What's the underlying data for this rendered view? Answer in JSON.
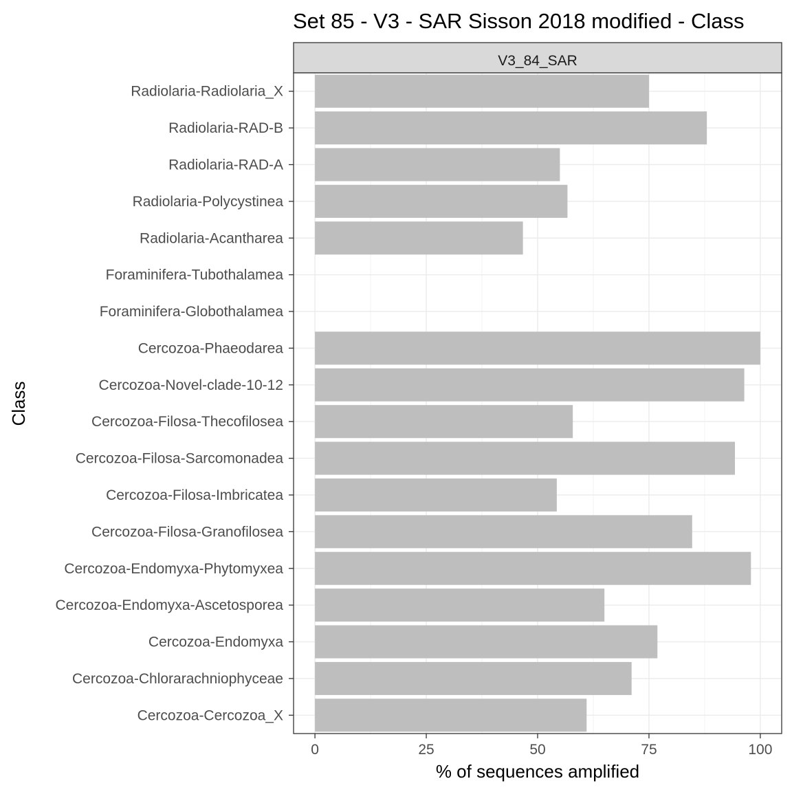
{
  "chart_data": {
    "type": "bar",
    "orientation": "horizontal",
    "title": "Set 85 - V3 - SAR Sisson 2018 modified - Class",
    "facet_label": "V3_84_SAR",
    "xlabel": "% of sequences amplified",
    "ylabel": "Class",
    "xlim": [
      -4.8,
      104.8
    ],
    "xticks": [
      0,
      25,
      50,
      75,
      100
    ],
    "grid": true,
    "bar_color": "#bebebe",
    "categories": [
      "Radiolaria-Radiolaria_X",
      "Radiolaria-RAD-B",
      "Radiolaria-RAD-A",
      "Radiolaria-Polycystinea",
      "Radiolaria-Acantharea",
      "Foraminifera-Tubothalamea",
      "Foraminifera-Globothalamea",
      "Cercozoa-Phaeodarea",
      "Cercozoa-Novel-clade-10-12",
      "Cercozoa-Filosa-Thecofilosea",
      "Cercozoa-Filosa-Sarcomonadea",
      "Cercozoa-Filosa-Imbricatea",
      "Cercozoa-Filosa-Granofilosea",
      "Cercozoa-Endomyxa-Phytomyxea",
      "Cercozoa-Endomyxa-Ascetosporea",
      "Cercozoa-Endomyxa",
      "Cercozoa-Chlorarachniophyceae",
      "Cercozoa-Cercozoa_X"
    ],
    "values": [
      75,
      88,
      55,
      56.7,
      46.7,
      0,
      0,
      100,
      96.4,
      57.9,
      94.3,
      54.3,
      84.7,
      97.9,
      65,
      76.9,
      71.1,
      61
    ]
  }
}
